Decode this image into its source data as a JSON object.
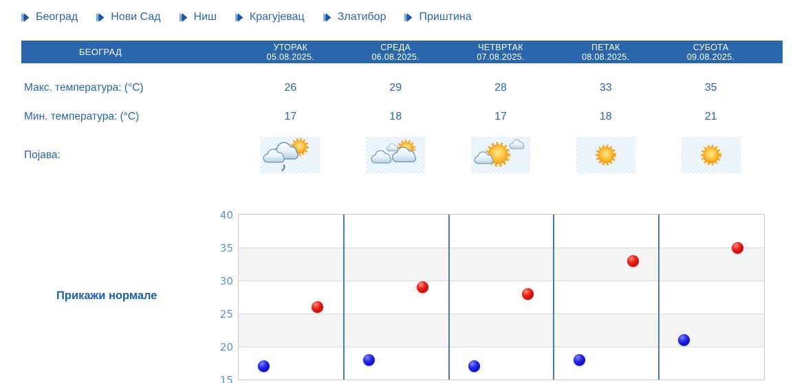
{
  "nav": {
    "cities": [
      {
        "label": "Београд"
      },
      {
        "label": "Нови Сад"
      },
      {
        "label": "Ниш"
      },
      {
        "label": "Крагујевац"
      },
      {
        "label": "Златибор"
      },
      {
        "label": "Приштина"
      }
    ]
  },
  "table": {
    "station": "БЕОГРАД",
    "rows": {
      "max_label": "Макс. температура: (°C)",
      "min_label": "Мин. температура: (°C)",
      "phenomenon_label": "Појава:"
    },
    "days": [
      {
        "name": "УТОРАК",
        "date": "05.08.2025.",
        "max": "26",
        "min": "17",
        "icon": "sun-behind-clouds-light-rain"
      },
      {
        "name": "СРЕДА",
        "date": "06.08.2025.",
        "max": "29",
        "min": "18",
        "icon": "sun-behind-clouds"
      },
      {
        "name": "ЧЕТВРТАК",
        "date": "07.08.2025.",
        "max": "28",
        "min": "17",
        "icon": "sun-with-clouds"
      },
      {
        "name": "ПЕТАК",
        "date": "08.08.2025.",
        "max": "33",
        "min": "18",
        "icon": "sunny"
      },
      {
        "name": "СУБОТА",
        "date": "09.08.2025.",
        "max": "35",
        "min": "21",
        "icon": "sunny"
      }
    ]
  },
  "chart": {
    "toggle_label": "Прикажи нормале"
  },
  "chart_data": {
    "type": "scatter",
    "categories": [
      "УТОРАК 05.08.2025.",
      "СРЕДА 06.08.2025.",
      "ЧЕТВРТАК 07.08.2025.",
      "ПЕТАК 08.08.2025.",
      "СУБОТА 09.08.2025."
    ],
    "series": [
      {
        "name": "Макс. температура (°C)",
        "color": "#d11311",
        "values": [
          26,
          29,
          28,
          33,
          35
        ]
      },
      {
        "name": "Мин. температура (°C)",
        "color": "#1717cf",
        "values": [
          17,
          18,
          17,
          18,
          21
        ]
      }
    ],
    "ylim": [
      15,
      40
    ],
    "yticks": [
      15,
      20,
      25,
      30,
      35,
      40
    ],
    "grid": true,
    "legend": "none",
    "band_fill_alternate": true
  },
  "colors": {
    "accent_blue": "#2a65ad",
    "header_bg": "#2b66ad",
    "header_text": "#ffffff",
    "tick_blue": "#5e92ca",
    "column_separator": "#2f6fae",
    "max_dot": "#d11311",
    "min_dot": "#1717cf"
  }
}
